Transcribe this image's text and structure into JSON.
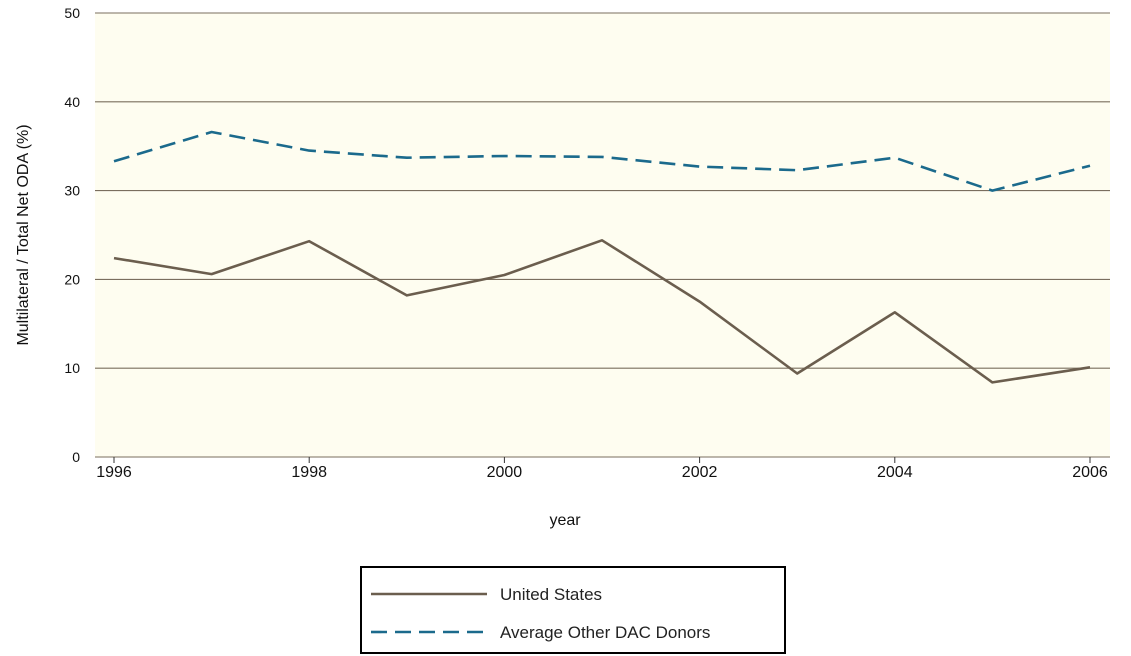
{
  "chart_data": {
    "type": "line",
    "xlabel": "year",
    "ylabel": "Multilateral / Total Net ODA (%)",
    "xlim": [
      1996,
      2006
    ],
    "ylim": [
      0,
      50
    ],
    "x_ticks": [
      1996,
      1998,
      2000,
      2002,
      2004,
      2006
    ],
    "y_ticks": [
      0,
      10,
      20,
      30,
      40,
      50
    ],
    "grid": "horizontal",
    "legend_position": "bottom-center",
    "x": [
      1996,
      1997,
      1998,
      1999,
      2000,
      2001,
      2002,
      2003,
      2004,
      2005,
      2006
    ],
    "series": [
      {
        "name": "United States",
        "style": "solid",
        "color": "#6b5e4e",
        "values": [
          22.4,
          20.6,
          24.3,
          18.2,
          20.5,
          24.4,
          17.5,
          9.4,
          16.3,
          8.4,
          10.1
        ]
      },
      {
        "name": "Average Other DAC Donors",
        "style": "dashed",
        "color": "#1b6a8c",
        "values": [
          33.3,
          36.6,
          34.5,
          33.7,
          33.9,
          33.8,
          32.7,
          32.3,
          33.7,
          30.0,
          32.8
        ]
      }
    ],
    "colors": {
      "plot_background": "#fefdf0",
      "gridline": "#7a6e5e"
    }
  }
}
